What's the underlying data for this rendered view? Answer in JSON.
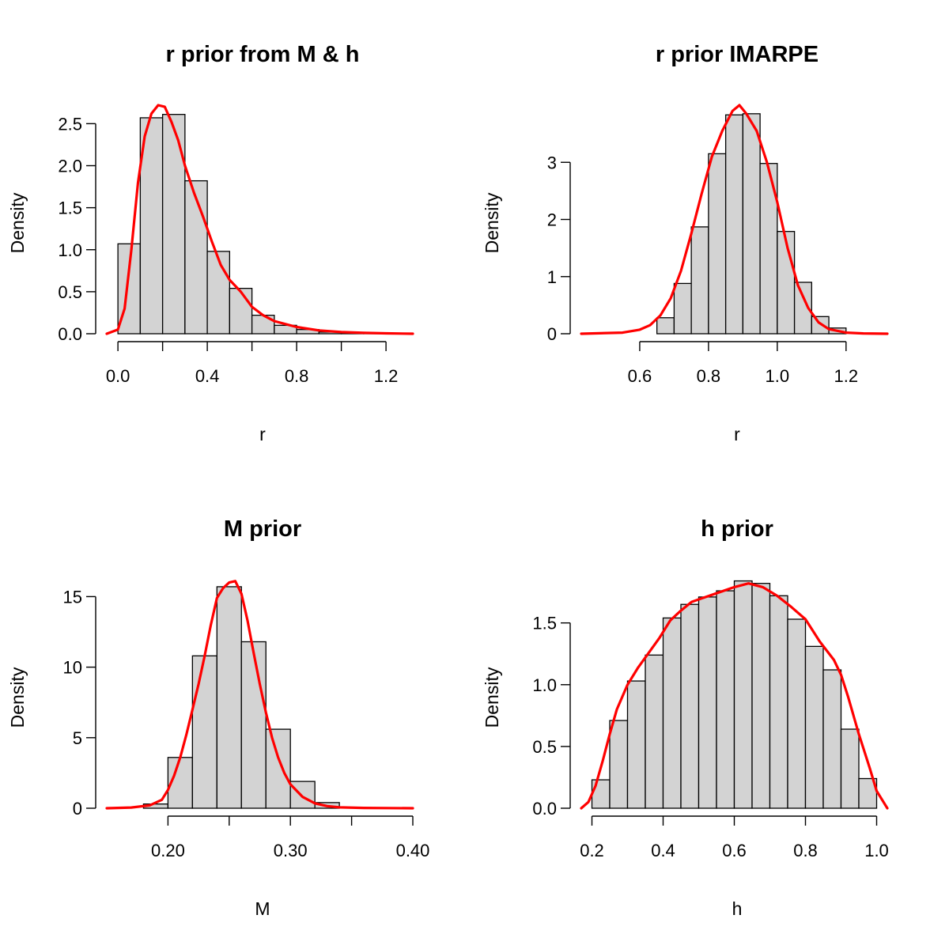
{
  "colors": {
    "bar_fill": "#d3d3d3",
    "bar_stroke": "#000000",
    "density_line": "#ff0000",
    "background": "#ffffff"
  },
  "chart_data": [
    {
      "type": "bar",
      "title": "r prior from M & h",
      "xlabel": "r",
      "ylabel": "Density",
      "xlim": [
        -0.05,
        1.32
      ],
      "ylim": [
        0,
        2.72
      ],
      "x_ticks": [
        0.0,
        0.2,
        0.4,
        0.6,
        0.8,
        1.0,
        1.2
      ],
      "x_tick_labels": [
        "0.0",
        "",
        "0.4",
        "",
        "0.8",
        "",
        "1.2"
      ],
      "y_ticks": [
        0.0,
        0.5,
        1.0,
        1.5,
        2.0,
        2.5
      ],
      "y_tick_labels": [
        "0.0",
        "0.5",
        "1.0",
        "1.5",
        "2.0",
        "2.5"
      ],
      "bin_edges": [
        0.0,
        0.1,
        0.2,
        0.3,
        0.4,
        0.5,
        0.6,
        0.7,
        0.8,
        0.9,
        1.0,
        1.1,
        1.2
      ],
      "values": [
        1.07,
        2.57,
        2.61,
        1.82,
        0.98,
        0.54,
        0.22,
        0.1,
        0.05,
        0.02,
        0.01,
        0.005
      ],
      "density": {
        "x": [
          -0.05,
          0.0,
          0.03,
          0.06,
          0.09,
          0.12,
          0.15,
          0.18,
          0.21,
          0.24,
          0.27,
          0.3,
          0.34,
          0.38,
          0.42,
          0.46,
          0.5,
          0.55,
          0.6,
          0.65,
          0.7,
          0.8,
          0.9,
          1.0,
          1.1,
          1.2,
          1.32
        ],
        "y": [
          0.0,
          0.05,
          0.3,
          1.0,
          1.8,
          2.35,
          2.62,
          2.72,
          2.7,
          2.52,
          2.3,
          2.0,
          1.68,
          1.4,
          1.1,
          0.82,
          0.64,
          0.5,
          0.32,
          0.22,
          0.15,
          0.08,
          0.04,
          0.02,
          0.01,
          0.005,
          0.0
        ]
      }
    },
    {
      "type": "bar",
      "title": "r prior IMARPE",
      "xlabel": "r",
      "ylabel": "Density",
      "xlim": [
        0.43,
        1.32
      ],
      "ylim": [
        0,
        4.0
      ],
      "x_ticks": [
        0.6,
        0.8,
        1.0,
        1.2
      ],
      "x_tick_labels": [
        "0.6",
        "0.8",
        "1.0",
        "1.2"
      ],
      "y_ticks": [
        0,
        1,
        2,
        3
      ],
      "y_tick_labels": [
        "0",
        "1",
        "2",
        "3"
      ],
      "bin_edges": [
        0.65,
        0.7,
        0.75,
        0.8,
        0.85,
        0.9,
        0.95,
        1.0,
        1.05,
        1.1,
        1.15,
        1.2
      ],
      "values": [
        0.28,
        0.88,
        1.87,
        3.15,
        3.83,
        3.85,
        2.98,
        1.79,
        0.9,
        0.3,
        0.1
      ],
      "density": {
        "x": [
          0.43,
          0.55,
          0.6,
          0.63,
          0.66,
          0.69,
          0.72,
          0.75,
          0.78,
          0.81,
          0.84,
          0.87,
          0.89,
          0.91,
          0.94,
          0.97,
          1.0,
          1.03,
          1.06,
          1.09,
          1.12,
          1.15,
          1.2,
          1.25,
          1.32
        ],
        "y": [
          0.0,
          0.02,
          0.07,
          0.15,
          0.32,
          0.62,
          1.1,
          1.75,
          2.45,
          3.1,
          3.55,
          3.9,
          4.0,
          3.85,
          3.55,
          3.0,
          2.3,
          1.5,
          0.85,
          0.45,
          0.2,
          0.08,
          0.02,
          0.005,
          0.0
        ]
      }
    },
    {
      "type": "bar",
      "title": "M prior",
      "xlabel": "M",
      "ylabel": "Density",
      "xlim": [
        0.15,
        0.4
      ],
      "ylim": [
        0,
        16.2
      ],
      "x_ticks": [
        0.2,
        0.25,
        0.3,
        0.35,
        0.4
      ],
      "x_tick_labels": [
        "0.20",
        "",
        "0.30",
        "",
        "0.40"
      ],
      "y_ticks": [
        0,
        5,
        10,
        15
      ],
      "y_tick_labels": [
        "0",
        "5",
        "10",
        "15"
      ],
      "bin_edges": [
        0.18,
        0.2,
        0.22,
        0.24,
        0.26,
        0.28,
        0.3,
        0.32,
        0.34
      ],
      "values": [
        0.3,
        3.6,
        10.8,
        15.7,
        11.8,
        5.6,
        1.9,
        0.4
      ],
      "density": {
        "x": [
          0.15,
          0.17,
          0.185,
          0.195,
          0.2,
          0.205,
          0.21,
          0.215,
          0.22,
          0.225,
          0.23,
          0.235,
          0.24,
          0.245,
          0.25,
          0.255,
          0.26,
          0.265,
          0.27,
          0.275,
          0.28,
          0.285,
          0.29,
          0.295,
          0.3,
          0.31,
          0.32,
          0.33,
          0.34,
          0.36,
          0.38,
          0.4
        ],
        "y": [
          0.0,
          0.05,
          0.2,
          0.6,
          1.3,
          2.3,
          3.6,
          5.2,
          7.0,
          8.8,
          10.8,
          13.0,
          14.9,
          15.6,
          16.0,
          16.1,
          15.2,
          13.3,
          11.0,
          8.8,
          6.8,
          5.0,
          3.6,
          2.5,
          1.7,
          0.8,
          0.35,
          0.15,
          0.06,
          0.02,
          0.01,
          0.0
        ]
      }
    },
    {
      "type": "bar",
      "title": "h prior",
      "xlabel": "h",
      "ylabel": "Density",
      "xlim": [
        0.17,
        1.03
      ],
      "ylim": [
        0,
        1.85
      ],
      "x_ticks": [
        0.2,
        0.4,
        0.6,
        0.8,
        1.0
      ],
      "x_tick_labels": [
        "0.2",
        "0.4",
        "0.6",
        "0.8",
        "1.0"
      ],
      "y_ticks": [
        0.0,
        0.5,
        1.0,
        1.5
      ],
      "y_tick_labels": [
        "0.0",
        "0.5",
        "1.0",
        "1.5"
      ],
      "bin_edges": [
        0.2,
        0.25,
        0.3,
        0.35,
        0.4,
        0.45,
        0.5,
        0.55,
        0.6,
        0.65,
        0.7,
        0.75,
        0.8,
        0.85,
        0.9,
        0.95,
        1.0
      ],
      "values": [
        0.23,
        0.71,
        1.03,
        1.24,
        1.54,
        1.65,
        1.71,
        1.76,
        1.84,
        1.82,
        1.72,
        1.53,
        1.31,
        1.12,
        0.64,
        0.24
      ],
      "density": {
        "x": [
          0.17,
          0.19,
          0.21,
          0.23,
          0.25,
          0.27,
          0.3,
          0.33,
          0.36,
          0.39,
          0.42,
          0.45,
          0.48,
          0.51,
          0.55,
          0.6,
          0.64,
          0.68,
          0.72,
          0.76,
          0.8,
          0.84,
          0.88,
          0.9,
          0.92,
          0.95,
          0.98,
          1.0,
          1.03
        ],
        "y": [
          0.0,
          0.05,
          0.18,
          0.38,
          0.6,
          0.8,
          1.0,
          1.14,
          1.26,
          1.38,
          1.52,
          1.6,
          1.67,
          1.7,
          1.74,
          1.79,
          1.82,
          1.79,
          1.72,
          1.63,
          1.53,
          1.35,
          1.2,
          1.08,
          0.9,
          0.6,
          0.33,
          0.14,
          0.0
        ]
      }
    }
  ]
}
